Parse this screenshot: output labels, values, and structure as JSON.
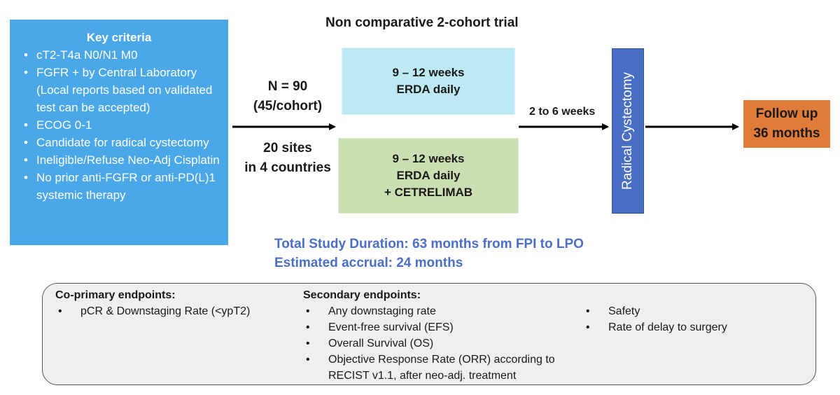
{
  "trial_title": "Non comparative 2-cohort trial",
  "criteria": {
    "title": "Key criteria",
    "items": [
      "cT2-T4a N0/N1 M0",
      "FGFR + by Central Laboratory (Local reports based on validated test can be accepted)",
      "ECOG 0-1",
      "Candidate for radical cystectomy",
      "Ineligible/Refuse Neo-Adj Cisplatin",
      "No prior anti-FGFR or anti-PD(L)1 systemic therapy"
    ]
  },
  "enrollment": {
    "n_line1": "N = 90",
    "n_line2": "(45/cohort)",
    "sites_line1": "20 sites",
    "sites_line2": "in 4 countries"
  },
  "arms": [
    {
      "line1": "9 – 12 weeks",
      "line2": "ERDA daily",
      "line3": ""
    },
    {
      "line1": "9 – 12 weeks",
      "line2": "ERDA daily",
      "line3": "+ CETRELIMAB"
    }
  ],
  "interval_label": "2 to 6 weeks",
  "surgery_label": "Radical Cystectomy",
  "followup": {
    "line1": "Follow up",
    "line2": "36 months"
  },
  "duration": {
    "total": "Total Study Duration: 63 months from FPI to LPO",
    "accrual": "Estimated accrual: 24 months"
  },
  "endpoints": {
    "primary_title": "Co-primary endpoints:",
    "primary_items": [
      "pCR & Downstaging Rate (<ypT2)"
    ],
    "secondary_title": "Secondary endpoints:",
    "secondary_items": [
      "Any downstaging rate",
      "Event-free survival (EFS)",
      "Overall Survival (OS)",
      "Objective Response Rate (ORR) according to RECIST v1.1, after neo-adj. treatment"
    ],
    "other_items": [
      "Safety",
      "Rate of delay to surgery"
    ]
  },
  "colors": {
    "criteria_bg": "#4aa8e8",
    "arm1_bg": "#bde9f3",
    "arm2_bg": "#c9dfb2",
    "surgery_bg": "#4a6ec4",
    "followup_bg": "#e07b39",
    "duration_text": "#4b6fc4",
    "endpoints_bg": "#efefef"
  }
}
